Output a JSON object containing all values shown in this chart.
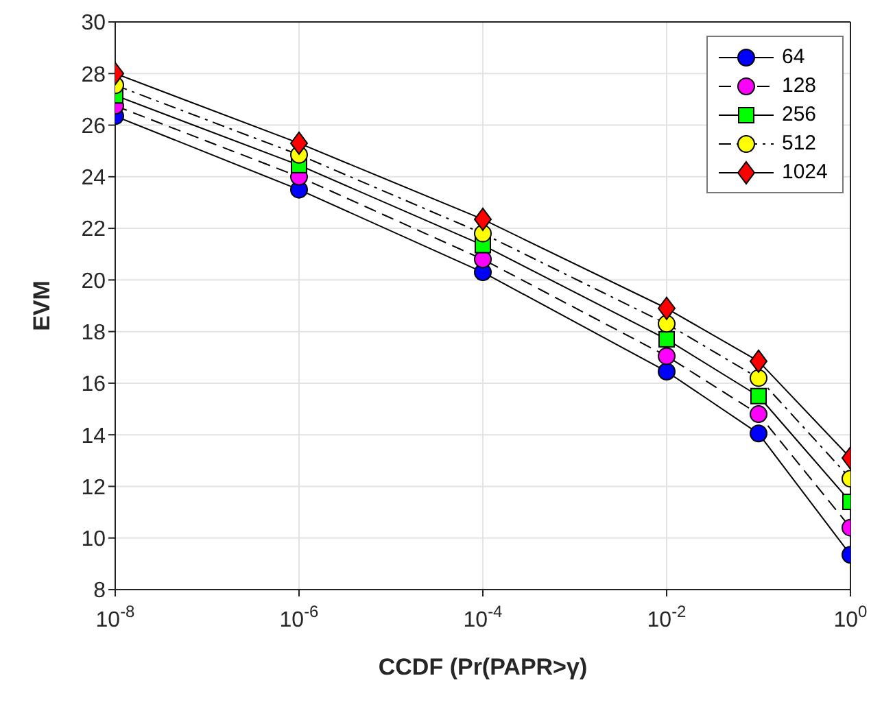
{
  "chart_data": {
    "type": "line",
    "xlabel": "CCDF (Pr(PAPR>γ)",
    "ylabel": "EVM",
    "log": "x",
    "x": [
      1e-08,
      1e-06,
      0.0001,
      0.01,
      0.1,
      1
    ],
    "xlim": [
      1e-08,
      1
    ],
    "xticks": [
      {
        "value": 1e-08,
        "label": "10$^{-8}$"
      },
      {
        "value": 1e-06,
        "label": "10$^{-6}$"
      },
      {
        "value": 0.0001,
        "label": "10$^{-4}$"
      },
      {
        "value": 0.01,
        "label": "10$^{-2}$"
      },
      {
        "value": 1,
        "label": "10$^{0}$"
      }
    ],
    "ylim": [
      8,
      30
    ],
    "yticks": [
      8,
      10,
      12,
      14,
      16,
      18,
      20,
      22,
      24,
      26,
      28,
      30
    ],
    "grid": true,
    "legend": "top right",
    "series": [
      {
        "name": "64",
        "color": "#0000ff",
        "marker": "circle",
        "line_style": "solid",
        "values": [
          26.35,
          23.5,
          20.3,
          16.45,
          14.05,
          9.35
        ]
      },
      {
        "name": "128",
        "color": "#ff00ff",
        "marker": "circle",
        "line_style": "dashed",
        "values": [
          26.75,
          24.0,
          20.8,
          17.05,
          14.8,
          10.4
        ]
      },
      {
        "name": "256",
        "color": "#00ff00",
        "marker": "square",
        "line_style": "solid",
        "values": [
          27.15,
          24.45,
          21.35,
          17.7,
          15.5,
          11.4
        ]
      },
      {
        "name": "512",
        "color": "#ffff00",
        "marker": "circle",
        "line_style": "dashdot",
        "values": [
          27.55,
          24.85,
          21.8,
          18.3,
          16.2,
          12.3
        ]
      },
      {
        "name": "1024",
        "color": "#ff0000",
        "marker": "diamond",
        "line_style": "solid",
        "values": [
          28.0,
          25.3,
          22.35,
          18.9,
          16.85,
          13.1
        ]
      }
    ]
  }
}
